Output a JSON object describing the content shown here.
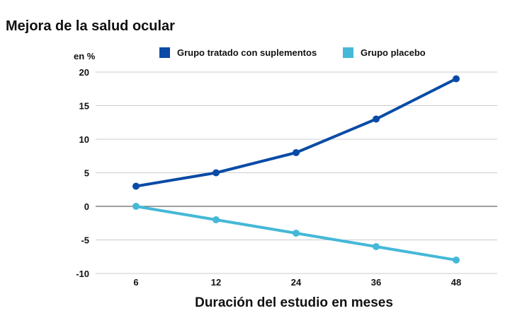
{
  "chart_data": {
    "type": "line",
    "title": "Mejora de la salud ocular",
    "ylabel": "en %",
    "xlabel": "Duración del estudio en meses",
    "categories": [
      "6",
      "12",
      "24",
      "36",
      "48"
    ],
    "ylim": [
      -10,
      20
    ],
    "yticks": [
      20,
      15,
      10,
      5,
      0,
      -5,
      -10
    ],
    "grid": true,
    "legend": "top",
    "series": [
      {
        "name": "Grupo tratado con suplementos",
        "color": "#0a4ba6",
        "values": [
          3,
          5,
          8,
          13,
          19
        ]
      },
      {
        "name": "Grupo placebo",
        "color": "#45b8d8",
        "values": [
          0,
          -2,
          -4,
          -6,
          -8
        ]
      }
    ]
  },
  "colors": {
    "grid": "#cccccc",
    "zero_line": "#666666"
  }
}
